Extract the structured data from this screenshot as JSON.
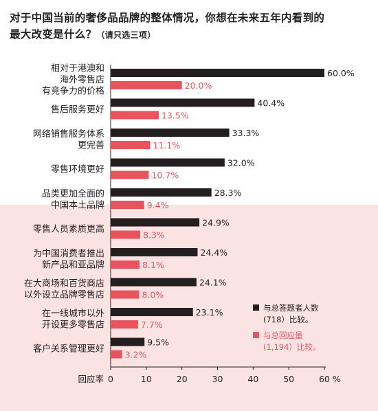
{
  "title": {
    "main_line1": "对于中国当前的奢侈品品牌的整体情况，你想在未来五年内看到的",
    "main_line2": "最大改变是什么？",
    "note": "（请只选三项）"
  },
  "legend": {
    "black_line1": "与总答题者人数",
    "black_line2": "(718）比较。",
    "red_line1": "与总回应量",
    "red_line2": "(1,194）比较。"
  },
  "colors": {
    "black_bar": "#231f20",
    "red_bar": "#e8545b",
    "red_text": "#e05a60",
    "band": "#fbe3e3"
  },
  "chart_data": {
    "type": "bar",
    "orientation": "horizontal",
    "categories": [
      [
        "相对于港澳和",
        "海外零售店",
        "有竞争力的价格"
      ],
      [
        "售后服务更好"
      ],
      [
        "网络销售服务体系",
        "更完善"
      ],
      [
        "零售环境更好"
      ],
      [
        "品类更加全面的",
        "中国本土品牌"
      ],
      [
        "零售人员素质更高"
      ],
      [
        "为中国消费者推出",
        "新产品和亚品牌"
      ],
      [
        "在大商场和百货商店",
        "以外设立品牌零售店"
      ],
      [
        "在一线城市以外",
        "开设更多零售店"
      ],
      [
        "客户关系管理更好"
      ]
    ],
    "series": [
      {
        "name": "与总答题者人数(718）比较。",
        "values": [
          60.0,
          40.4,
          33.3,
          32.0,
          28.3,
          24.9,
          24.4,
          24.1,
          23.1,
          9.5
        ],
        "labels": [
          "60.0%",
          "40.4%",
          "33.3%",
          "32.0%",
          "28.3%",
          "24.9%",
          "24.4%",
          "24.1%",
          "23.1%",
          "9.5%"
        ]
      },
      {
        "name": "与总回应量(1,194）比较。",
        "values": [
          20.0,
          13.5,
          11.1,
          10.7,
          9.4,
          8.3,
          8.1,
          8.0,
          7.7,
          3.2
        ],
        "labels": [
          "20.0%",
          "13.5%",
          "11.1%",
          "10.7%",
          "9.4%",
          "8.3%",
          "8.1%",
          "8.0%",
          "7.7%",
          "3.2%"
        ]
      }
    ],
    "xlabel": "回应率",
    "xlim": [
      0,
      60
    ],
    "xticks": [
      0,
      10,
      20,
      30,
      40,
      50,
      60
    ],
    "xtick_labels": [
      "0",
      "10",
      "20",
      "30",
      "40",
      "50",
      "60 %"
    ],
    "grid": false,
    "legend_position": "bottom-right"
  }
}
